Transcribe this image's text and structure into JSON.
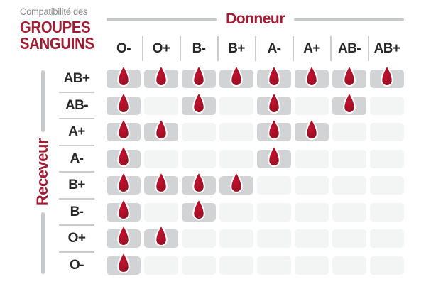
{
  "title": {
    "kicker": "Compatibilité des",
    "line1": "GROUPES",
    "line2": "SANGUINS"
  },
  "axes": {
    "donor": "Donneur",
    "receiver": "Receveur"
  },
  "chart_data": {
    "type": "heatmap",
    "title": "Compatibilité des groupes sanguins",
    "x_axis_label": "Donneur",
    "y_axis_label": "Receveur",
    "columns": [
      "O-",
      "O+",
      "B-",
      "B+",
      "A-",
      "A+",
      "AB-",
      "AB+"
    ],
    "rows": [
      "AB+",
      "AB-",
      "A+",
      "A-",
      "B+",
      "B-",
      "O+",
      "O-"
    ],
    "matrix": [
      [
        1,
        1,
        1,
        1,
        1,
        1,
        1,
        1
      ],
      [
        1,
        0,
        1,
        0,
        1,
        0,
        1,
        0
      ],
      [
        1,
        1,
        0,
        0,
        1,
        1,
        0,
        0
      ],
      [
        1,
        0,
        0,
        0,
        1,
        0,
        0,
        0
      ],
      [
        1,
        1,
        1,
        1,
        0,
        0,
        0,
        0
      ],
      [
        1,
        0,
        1,
        0,
        0,
        0,
        0,
        0
      ],
      [
        1,
        1,
        0,
        0,
        0,
        0,
        0,
        0
      ],
      [
        1,
        0,
        0,
        0,
        0,
        0,
        0,
        0
      ]
    ],
    "cell_marker_icon": "blood-drop-icon",
    "legend_position": "none",
    "grid": false
  },
  "colors": {
    "accent_red": "#a11d33",
    "drop_red_light": "#c2122d",
    "drop_red_dark": "#8e0e22",
    "filled_cell": "#d2d3d5",
    "empty_cell": "#f3f4f4",
    "muted_gray": "#8b8b8b",
    "divider_gray": "#cbcccd",
    "axis_line_gray": "#c6c7c9",
    "label_dark": "#282828"
  }
}
